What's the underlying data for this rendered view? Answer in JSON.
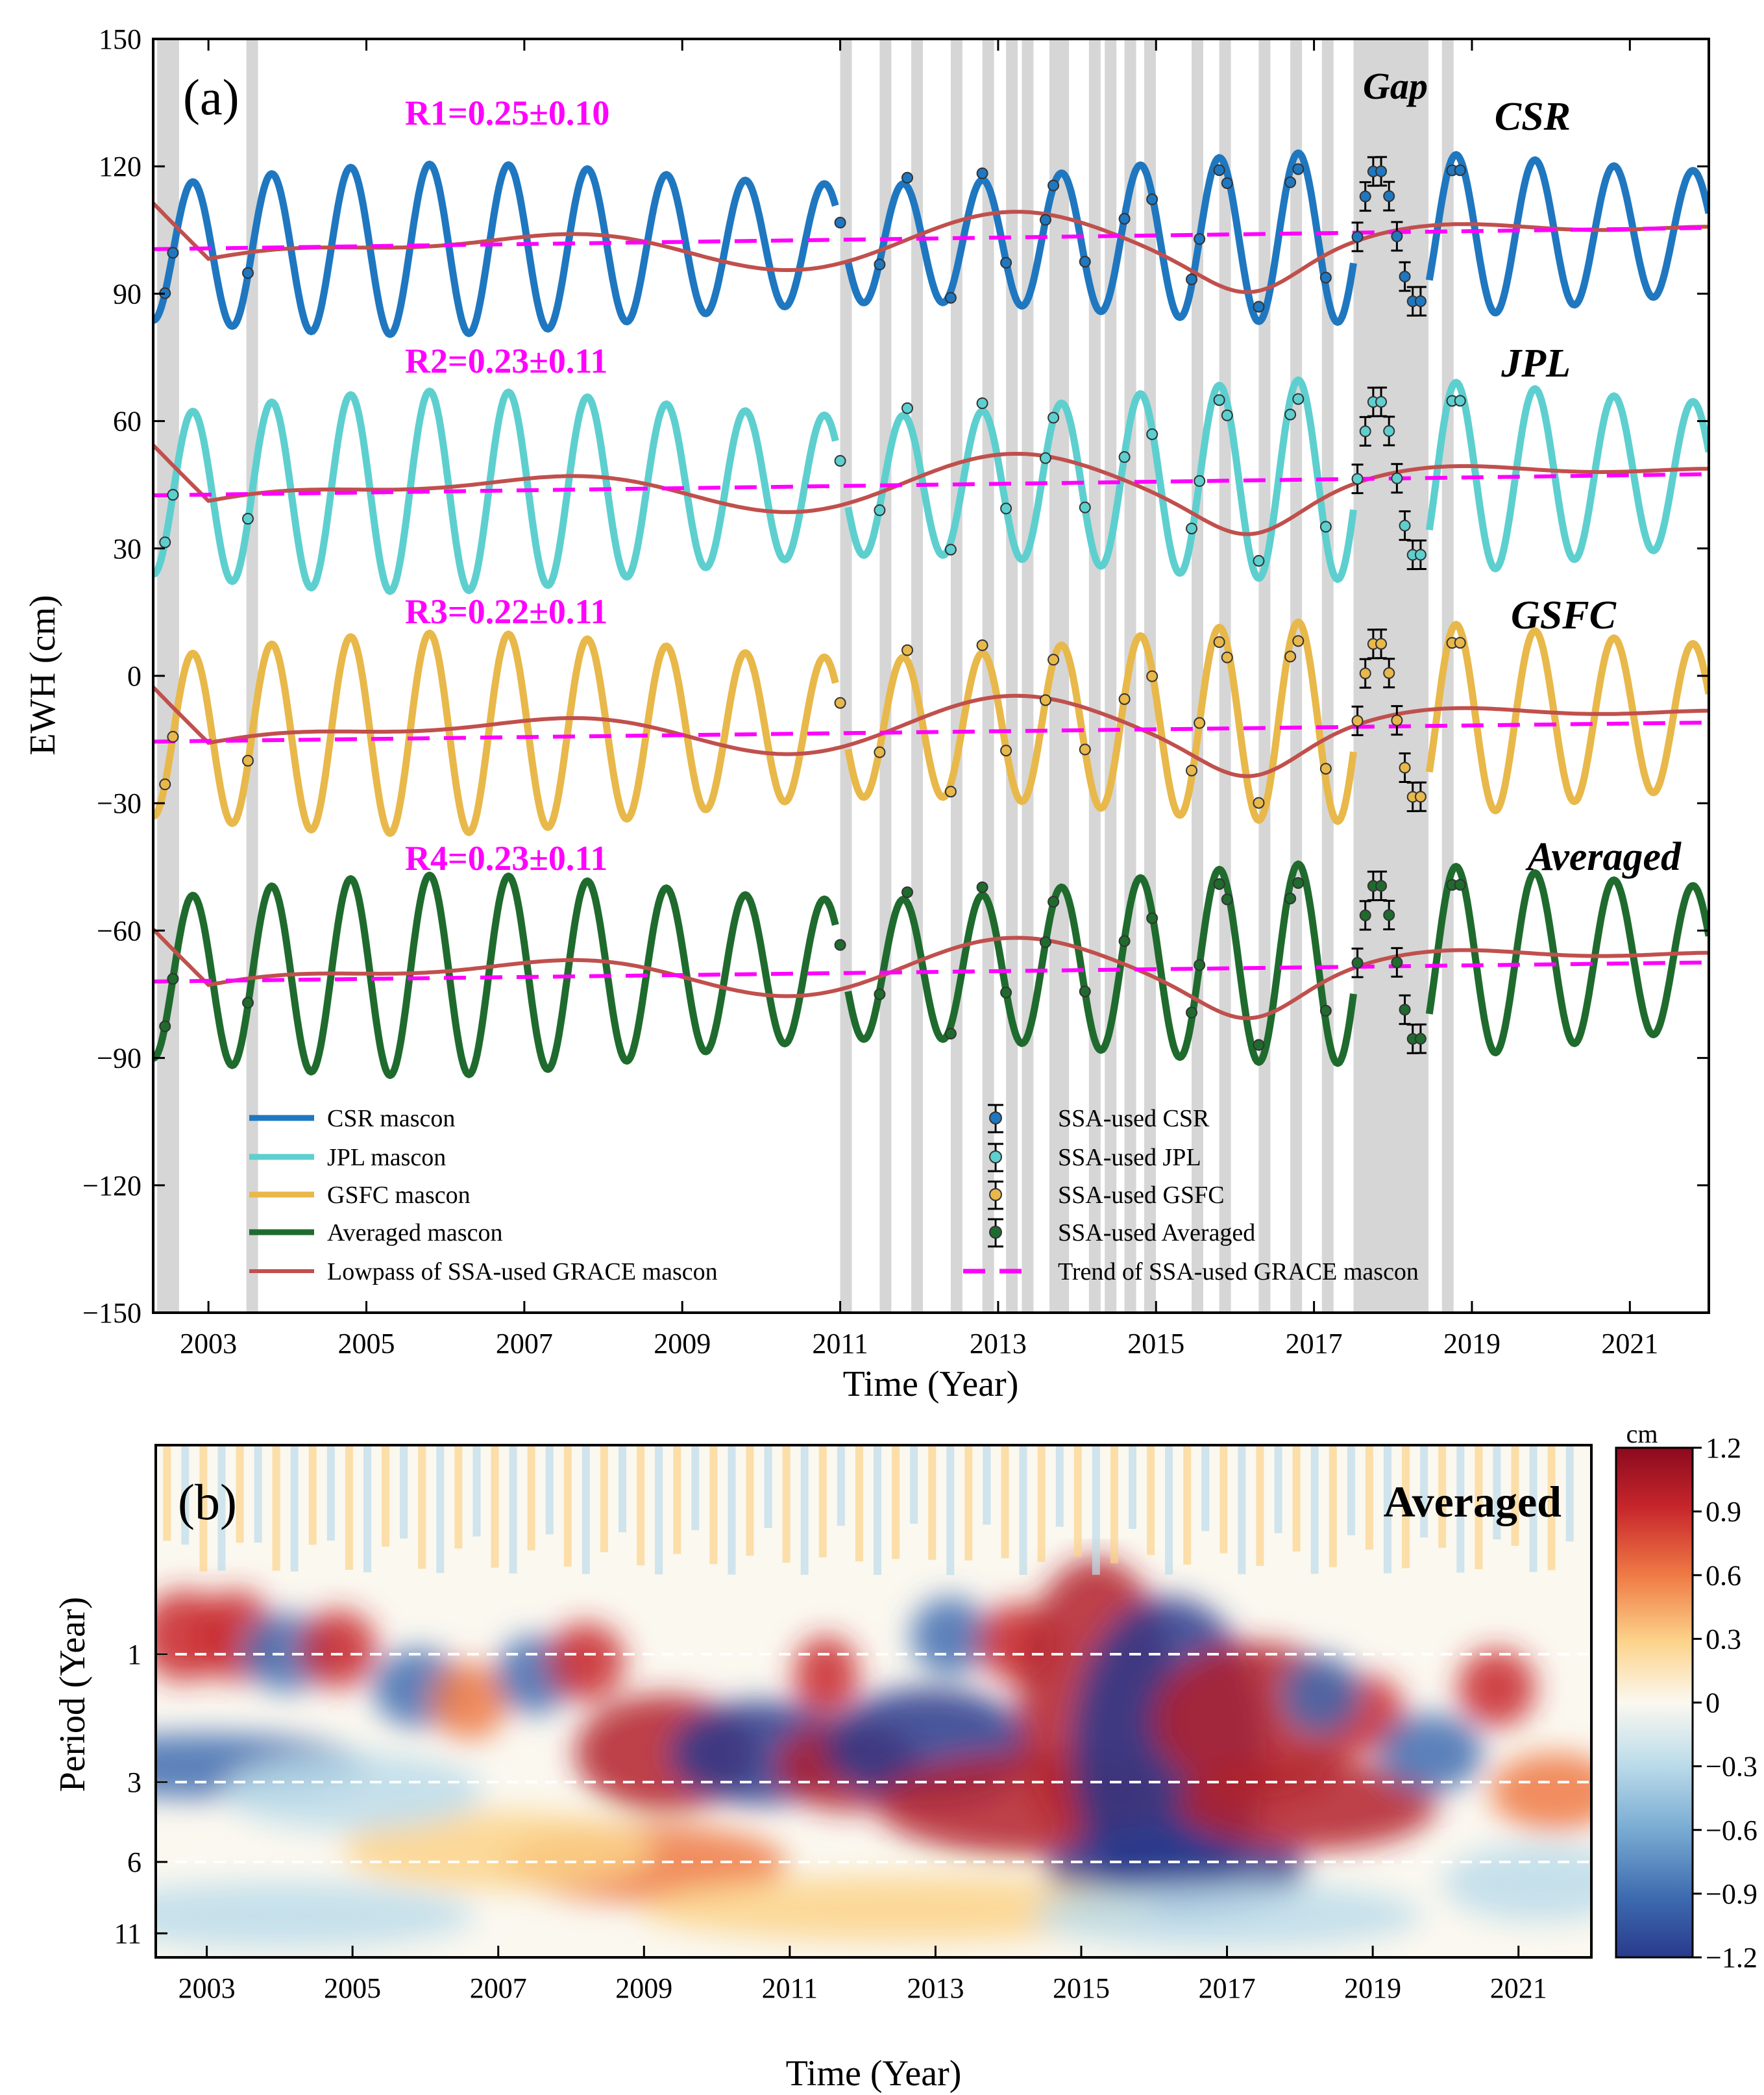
{
  "panel_a": {
    "panel_label": "(a)",
    "gap_label": "Gap",
    "xlabel": "Time (Year)",
    "ylabel": "EWH (cm)",
    "xticks": [
      "2003",
      "2005",
      "2007",
      "2009",
      "2011",
      "2013",
      "2015",
      "2017",
      "2019",
      "2021"
    ],
    "yticks": [
      "150",
      "120",
      "90",
      "60",
      "30",
      "0",
      "−30",
      "−60",
      "−90",
      "−120",
      "−150"
    ],
    "r_labels": [
      "R1=0.25±0.10",
      "R2=0.23±0.11",
      "R3=0.22±0.11",
      "R4=0.23±0.11"
    ],
    "series_labels": [
      "CSR",
      "JPL",
      "GSFC",
      "Averaged"
    ],
    "legend_left": [
      "CSR mascon",
      "JPL mascon",
      "GSFC mascon",
      "Averaged mascon",
      "Lowpass of SSA-used GRACE mascon"
    ],
    "legend_right": [
      "SSA-used CSR",
      "SSA-used JPL",
      "SSA-used GSFC",
      "SSA-used Averaged",
      "Trend of SSA-used GRACE mascon"
    ]
  },
  "panel_b": {
    "panel_label": "(b)",
    "title": "Averaged",
    "xlabel": "Time (Year)",
    "ylabel": "Period (Year)",
    "xticks": [
      "2003",
      "2005",
      "2007",
      "2009",
      "2011",
      "2013",
      "2015",
      "2017",
      "2019",
      "2021"
    ],
    "yticks": [
      "1",
      "3",
      "6",
      "11"
    ],
    "colorbar_unit": "cm",
    "colorbar_ticks": [
      "1.2",
      "0.9",
      "0.6",
      "0.3",
      "0",
      "−0.3",
      "−0.6",
      "−0.9",
      "−1.2"
    ]
  },
  "colors": {
    "csr": "#1f77c0",
    "jpl": "#5ecfcf",
    "gsfc": "#e8b84a",
    "averaged": "#1f6b2e",
    "lowpass": "#c0504d",
    "trend": "#ff00ff",
    "gap_band": "#d6d6d6"
  },
  "chart_data": [
    {
      "type": "line",
      "panel": "a",
      "xlabel": "Time (Year)",
      "ylabel": "EWH (cm)",
      "xlim": [
        2002.3,
        2022.0
      ],
      "ylim": [
        -150,
        150
      ],
      "grid": false,
      "legend_position": "bottom",
      "series": [
        {
          "name": "CSR mascon",
          "baseline": 102,
          "amplitude": 17
        },
        {
          "name": "JPL mascon",
          "baseline": 45,
          "amplitude": 20
        },
        {
          "name": "GSFC mascon",
          "baseline": -12,
          "amplitude": 20
        },
        {
          "name": "Averaged mascon",
          "baseline": -69,
          "amplitude": 20
        }
      ],
      "trend_lines": [
        {
          "name": "CSR",
          "x": [
            2002.3,
            2022.0
          ],
          "y": [
            100.5,
            105.5
          ]
        },
        {
          "name": "JPL",
          "x": [
            2002.3,
            2022.0
          ],
          "y": [
            42.5,
            47.5
          ]
        },
        {
          "name": "GSFC",
          "x": [
            2002.3,
            2022.0
          ],
          "y": [
            -15.5,
            -11
          ]
        },
        {
          "name": "Averaged",
          "x": [
            2002.3,
            2022.0
          ],
          "y": [
            -72,
            -67.5
          ]
        }
      ],
      "annotations": [
        "R1=0.25±0.10",
        "R2=0.23±0.11",
        "R3=0.22±0.11",
        "R4=0.23±0.11",
        "Gap"
      ],
      "gap_period": [
        2017.5,
        2018.45
      ]
    },
    {
      "type": "heatmap",
      "panel": "b",
      "title": "Averaged",
      "xlabel": "Time (Year)",
      "ylabel": "Period (Year)",
      "xlim": [
        2002.3,
        2022.0
      ],
      "y_ticks": [
        1,
        3,
        6,
        11
      ],
      "colorbar_range": [
        -1.2,
        1.2
      ],
      "colorbar_unit": "cm",
      "reference_periods": [
        1,
        3,
        6
      ]
    }
  ]
}
